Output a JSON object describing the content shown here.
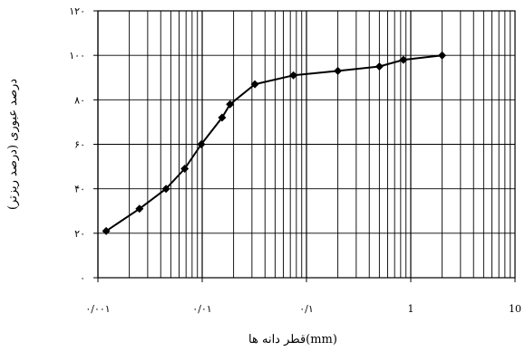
{
  "chart_data": {
    "type": "line",
    "title": "",
    "xlabel": "قطر دانه ها(mm)",
    "ylabel": "درصد عبوری (درصد ریزتر)",
    "x_scale": "log",
    "xlim": [
      0.001,
      10
    ],
    "ylim": [
      0,
      120
    ],
    "grid": true,
    "legend": "none",
    "x_tick_labels": [
      "۰/۰۰۱",
      "۰/۰۱",
      "۰/۱",
      "1",
      "10"
    ],
    "x_tick_values": [
      0.001,
      0.01,
      0.1,
      1,
      10
    ],
    "y_tick_labels": [
      "۰",
      "۲۰",
      "۴۰",
      "۶۰",
      "۸۰",
      "۱۰۰",
      "۱۲۰"
    ],
    "y_tick_values": [
      0,
      20,
      40,
      60,
      80,
      100,
      120
    ],
    "series": [
      {
        "x": [
          0.0012,
          0.0025,
          0.0045,
          0.0068,
          0.0098,
          0.0155,
          0.0185,
          0.032,
          0.075,
          0.2,
          0.5,
          0.85,
          2.0
        ],
        "y": [
          21,
          31,
          40,
          49,
          60,
          72,
          78,
          87,
          91,
          93,
          95,
          98,
          100
        ],
        "color": "#000000",
        "marker": "diamond"
      }
    ]
  }
}
